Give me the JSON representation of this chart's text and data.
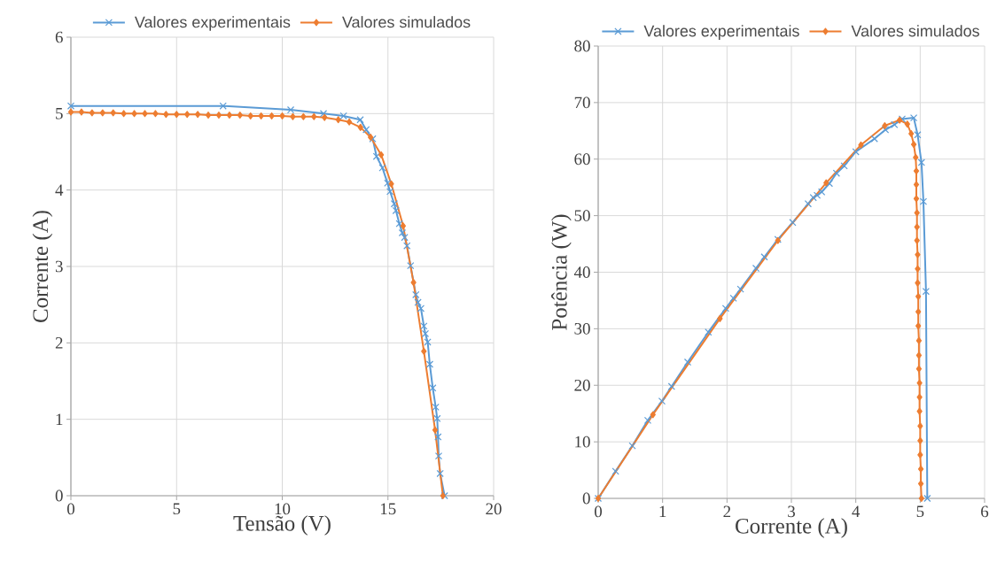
{
  "chart_data": [
    {
      "type": "line",
      "xlabel": "Tensão (V)",
      "ylabel": "Corrente (A)",
      "xlim": [
        0,
        20
      ],
      "ylim": [
        0,
        6
      ],
      "xticks": [
        0,
        5,
        10,
        15,
        20
      ],
      "yticks": [
        0,
        1,
        2,
        3,
        4,
        5,
        6
      ],
      "grid": true,
      "legend": "top",
      "series": [
        {
          "name": "Valores experimentais",
          "color": "#5b9bd5",
          "marker": "cross",
          "x": [
            0,
            7.2,
            10.4,
            11.95,
            12.9,
            13.69,
            13.97,
            14.28,
            14.46,
            14.74,
            14.98,
            15.1,
            15.3,
            15.38,
            15.54,
            15.68,
            15.79,
            15.9,
            16.07,
            16.32,
            16.42,
            16.56,
            16.7,
            16.77,
            16.88,
            16.98,
            17.12,
            17.26,
            17.33,
            17.37,
            17.4,
            17.47,
            17.68
          ],
          "values": [
            5.1,
            5.1,
            5.05,
            5.0,
            4.97,
            4.92,
            4.79,
            4.67,
            4.44,
            4.29,
            4.09,
            3.98,
            3.82,
            3.73,
            3.56,
            3.44,
            3.38,
            3.27,
            3.01,
            2.63,
            2.53,
            2.45,
            2.22,
            2.12,
            2.01,
            1.72,
            1.41,
            1.16,
            1.01,
            0.77,
            0.52,
            0.29,
            0
          ]
        },
        {
          "name": "Valores simulados",
          "color": "#ed7d31",
          "marker": "diamond",
          "x": [
            0,
            0.5,
            1,
            1.5,
            2,
            2.5,
            3,
            3.5,
            4,
            4.5,
            5,
            5.5,
            6,
            6.5,
            7,
            7.5,
            8,
            8.5,
            9,
            9.5,
            10,
            10.5,
            11,
            11.5,
            12,
            12.65,
            13.17,
            13.7,
            14.18,
            14.68,
            15.16,
            15.72,
            16.21,
            16.7,
            17.23,
            17.6
          ],
          "values": [
            5.02,
            5.02,
            5.01,
            5.01,
            5.01,
            5.0,
            5.0,
            5.0,
            5.0,
            4.99,
            4.99,
            4.99,
            4.99,
            4.98,
            4.98,
            4.98,
            4.98,
            4.97,
            4.97,
            4.97,
            4.97,
            4.96,
            4.96,
            4.96,
            4.95,
            4.92,
            4.89,
            4.82,
            4.69,
            4.46,
            4.08,
            3.53,
            2.79,
            1.89,
            0.86,
            0
          ]
        }
      ]
    },
    {
      "type": "line",
      "xlabel": "Corrente (A)",
      "ylabel": "Potência (W)",
      "xlim": [
        0,
        6
      ],
      "ylim": [
        0,
        80
      ],
      "xticks": [
        0,
        1,
        2,
        3,
        4,
        5,
        6
      ],
      "yticks": [
        0,
        10,
        20,
        30,
        40,
        50,
        60,
        70,
        80
      ],
      "grid": true,
      "legend": "top",
      "series": [
        {
          "name": "Valores experimentais",
          "color": "#5b9bd5",
          "marker": "cross",
          "x": [
            0,
            0.27,
            0.53,
            0.77,
            0.99,
            1.14,
            1.39,
            1.71,
            1.98,
            2.1,
            2.21,
            2.45,
            2.58,
            2.79,
            3.02,
            3.26,
            3.34,
            3.4,
            3.47,
            3.59,
            3.7,
            3.82,
            4.0,
            4.29,
            4.46,
            4.6,
            4.72,
            4.9,
            4.96,
            5.02,
            5.05,
            5.09,
            5.11
          ],
          "values": [
            0,
            4.8,
            9.3,
            13.8,
            17.2,
            19.8,
            24.1,
            29.4,
            33.6,
            35.4,
            37.0,
            40.7,
            42.7,
            45.8,
            48.8,
            52.1,
            53.2,
            53.6,
            54.2,
            55.7,
            57.5,
            58.8,
            61.3,
            63.6,
            65.2,
            66.1,
            67.1,
            67.3,
            64.3,
            59.4,
            52.5,
            36.6,
            0
          ]
        },
        {
          "name": "Valores simulados",
          "color": "#ed7d31",
          "marker": "diamond",
          "x": [
            0,
            0.85,
            1.89,
            2.79,
            3.54,
            4.08,
            4.45,
            4.68,
            4.8,
            4.86,
            4.9,
            4.93,
            4.94,
            4.94,
            4.94,
            4.95,
            4.95,
            4.95,
            4.96,
            4.96,
            4.96,
            4.97,
            4.97,
            4.97,
            4.98,
            4.98,
            4.98,
            4.99,
            4.99,
            4.99,
            5.0,
            5.0,
            5.0,
            5.01,
            5.01,
            5.02
          ],
          "values": [
            0,
            14.8,
            31.8,
            45.6,
            55.8,
            62.5,
            65.9,
            66.9,
            66.2,
            64.5,
            62.6,
            60.3,
            57.9,
            55.5,
            53.0,
            50.5,
            48.0,
            45.6,
            43.1,
            40.6,
            38.1,
            35.7,
            33.0,
            30.5,
            27.9,
            25.3,
            22.9,
            20.4,
            17.9,
            15.4,
            12.8,
            10.2,
            7.7,
            5.2,
            2.6,
            0
          ]
        }
      ]
    }
  ]
}
